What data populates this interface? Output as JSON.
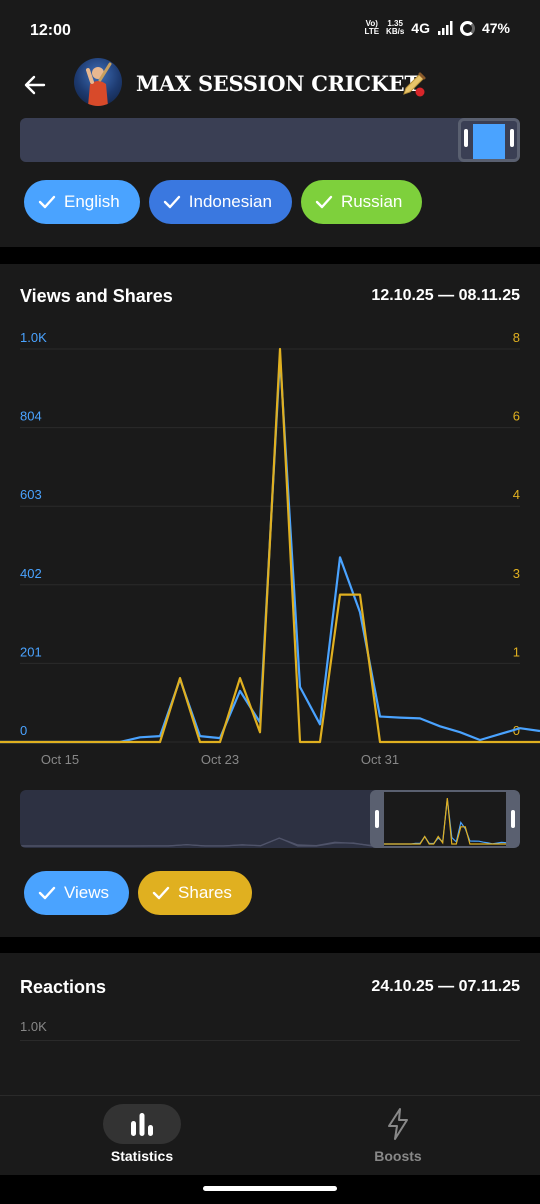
{
  "status": {
    "time": "12:00",
    "volte": "Vo)",
    "lte": "LTE",
    "speed_value": "1.35",
    "speed_unit": "KB/s",
    "network": "4G",
    "battery": "47%"
  },
  "header": {
    "title": "MAX SESSION CRICKET"
  },
  "languages": [
    {
      "label": "English",
      "color": "#4aa3ff"
    },
    {
      "label": "Indonesian",
      "color": "#3a78e0"
    },
    {
      "label": "Russian",
      "color": "#7ed03c"
    }
  ],
  "views_section": {
    "title": "Views and Shares",
    "range": "12.10.25 — 08.11.25",
    "left_axis": [
      "1.0K",
      "804",
      "603",
      "402",
      "201",
      "0"
    ],
    "right_axis": [
      "8",
      "6",
      "4",
      "3",
      "1",
      "0"
    ],
    "x_ticks": [
      "Oct 15",
      "Oct 23",
      "Oct 31"
    ],
    "legend": [
      {
        "label": "Views",
        "color": "#4aa3ff"
      },
      {
        "label": "Shares",
        "color": "#e0b020"
      }
    ]
  },
  "chart_data": {
    "type": "line",
    "x": [
      "12.10",
      "13.10",
      "14.10",
      "15.10",
      "16.10",
      "17.10",
      "18.10",
      "19.10",
      "20.10",
      "21.10",
      "22.10",
      "23.10",
      "24.10",
      "25.10",
      "26.10",
      "27.10",
      "28.10",
      "29.10",
      "30.10",
      "31.10",
      "01.11",
      "02.11",
      "03.11",
      "04.11",
      "05.11",
      "06.11",
      "07.11",
      "08.11"
    ],
    "series": [
      {
        "name": "Views",
        "axis": "left",
        "color": "#4aa3ff",
        "values": [
          0,
          0,
          0,
          0,
          0,
          0,
          0,
          12,
          15,
          160,
          15,
          10,
          130,
          50,
          980,
          140,
          45,
          470,
          330,
          65,
          62,
          60,
          40,
          25,
          5,
          20,
          35,
          28
        ]
      },
      {
        "name": "Shares",
        "axis": "right",
        "color": "#e0b020",
        "values": [
          0,
          0,
          0,
          0,
          0,
          0,
          0,
          0,
          0,
          1.3,
          0,
          0,
          1.3,
          0.2,
          8,
          0,
          0,
          3,
          3,
          0,
          0,
          0,
          0,
          0,
          0,
          0,
          0,
          0
        ]
      }
    ],
    "left_ylim": [
      0,
      1000
    ],
    "right_ylim": [
      0,
      8
    ],
    "grid": true
  },
  "reactions_section": {
    "title": "Reactions",
    "range": "24.10.25 — 07.11.25",
    "axis_top": "1.0K"
  },
  "nav": [
    {
      "label": "Statistics",
      "active": true
    },
    {
      "label": "Boosts",
      "active": false
    }
  ]
}
